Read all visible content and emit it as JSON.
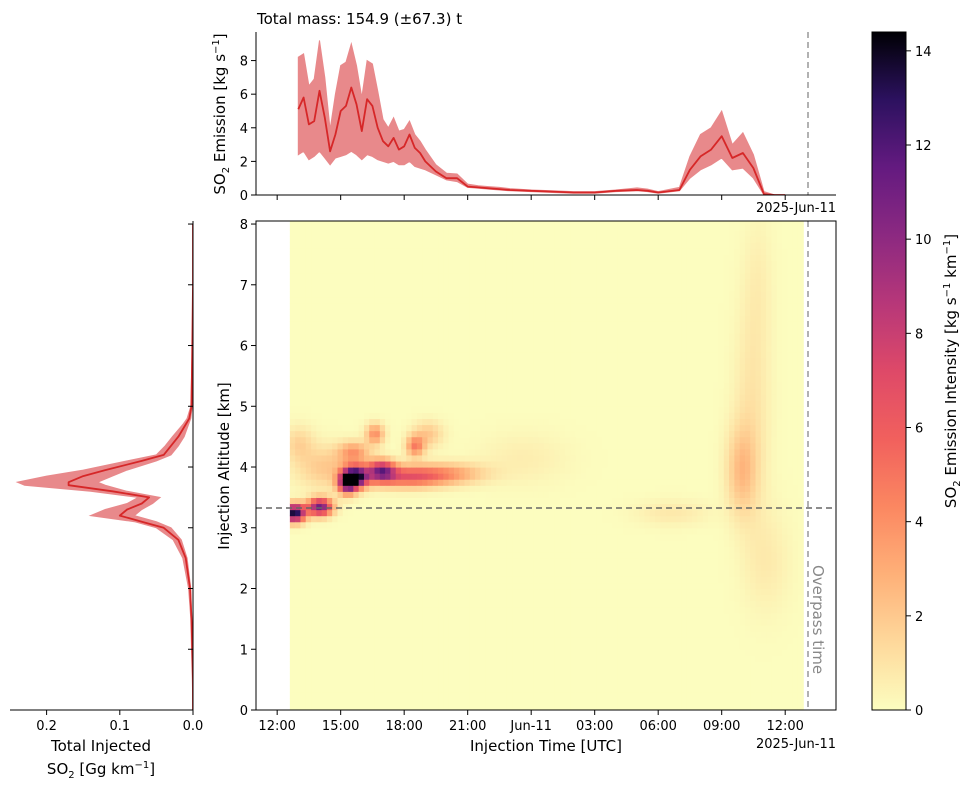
{
  "top_title": "Total mass: 154.9 (±67.3) t",
  "top_ylabel": "SO₂ Emission [kg s⁻¹]",
  "main_ylabel": "Injection Altitude [km]",
  "main_xlabel": "Injection Time [UTC]",
  "date_tag": "2025-Jun-11",
  "overpass_label": "Overpass time",
  "side_xlabel_line1": "Total Injected",
  "side_xlabel_line2": "SO₂ [Gg km⁻¹]",
  "colorbar_label": "SO₂ Emission Intensity [kg s⁻¹ km⁻¹]",
  "colors": {
    "line": "#d62728",
    "band": "#e8898b",
    "dash_vertical": "#999999",
    "dash_horizontal": "#666666"
  },
  "colormap": "magma_r",
  "chart_data": [
    {
      "type": "line",
      "panel": "emission time series",
      "x_unit": "hours since 12:00 UTC (2025-Jun-10)",
      "ylim": [
        0,
        9.7
      ],
      "yticks": [
        0,
        2,
        4,
        6,
        8
      ],
      "x": [
        1.0,
        1.25,
        1.5,
        1.75,
        2.0,
        2.25,
        2.5,
        2.75,
        3.0,
        3.25,
        3.5,
        3.75,
        4.0,
        4.25,
        4.5,
        4.75,
        5.0,
        5.25,
        5.5,
        5.75,
        6.0,
        6.25,
        6.5,
        6.75,
        7.0,
        7.5,
        8.0,
        8.5,
        9.0,
        9.5,
        10.0,
        10.5,
        11.0,
        12.0,
        13.0,
        14.0,
        15.0,
        16.0,
        17.0,
        17.5,
        18.0,
        19.0,
        19.5,
        20.0,
        20.5,
        21.0,
        21.5,
        22.0,
        22.5,
        23.0,
        23.5,
        24.0
      ],
      "y": [
        5.1,
        5.8,
        4.2,
        4.4,
        6.2,
        4.6,
        2.6,
        3.6,
        5.0,
        5.3,
        6.4,
        5.4,
        3.8,
        5.7,
        5.3,
        4.0,
        3.2,
        2.9,
        3.4,
        2.7,
        2.9,
        3.6,
        2.8,
        2.5,
        2.0,
        1.4,
        1.0,
        1.0,
        0.5,
        0.45,
        0.4,
        0.35,
        0.3,
        0.25,
        0.2,
        0.15,
        0.15,
        0.25,
        0.3,
        0.25,
        0.15,
        0.3,
        1.5,
        2.3,
        2.7,
        3.5,
        2.2,
        2.5,
        1.6,
        0.05,
        0.0,
        0.0
      ],
      "y_low": [
        2.4,
        2.6,
        2.1,
        2.3,
        2.6,
        2.2,
        1.8,
        2.2,
        2.3,
        2.4,
        2.6,
        2.4,
        2.1,
        2.4,
        2.3,
        2.1,
        2.0,
        1.9,
        2.0,
        1.8,
        1.8,
        2.0,
        1.7,
        1.6,
        1.5,
        1.2,
        0.9,
        0.8,
        0.45,
        0.4,
        0.35,
        0.3,
        0.25,
        0.2,
        0.15,
        0.1,
        0.1,
        0.2,
        0.25,
        0.2,
        0.1,
        0.25,
        1.0,
        1.5,
        1.8,
        2.2,
        1.5,
        1.6,
        1.0,
        0.0,
        0.0,
        0.0
      ],
      "y_high": [
        8.2,
        8.4,
        6.5,
        6.9,
        9.2,
        7.0,
        3.9,
        6.0,
        7.7,
        7.9,
        9.0,
        7.7,
        5.8,
        8.0,
        7.8,
        6.2,
        4.5,
        4.0,
        4.6,
        3.8,
        3.9,
        4.4,
        3.6,
        3.2,
        2.7,
        1.8,
        1.3,
        1.25,
        0.65,
        0.55,
        0.5,
        0.45,
        0.38,
        0.3,
        0.25,
        0.2,
        0.2,
        0.3,
        0.42,
        0.35,
        0.2,
        0.45,
        2.3,
        3.6,
        4.0,
        5.0,
        3.0,
        3.7,
        2.4,
        0.2,
        0.0,
        0.0
      ]
    },
    {
      "type": "line",
      "panel": "vertical profile",
      "xlabel": "Total Injected SO₂ [Gg km⁻¹]",
      "xlim": [
        0.25,
        0.0
      ],
      "xticks": [
        0.2,
        0.1,
        0.0
      ],
      "ylim": [
        0,
        8.05
      ],
      "y": [
        0.0,
        0.5,
        1.0,
        1.5,
        2.0,
        2.5,
        2.8,
        3.0,
        3.1,
        3.2,
        3.3,
        3.4,
        3.5,
        3.6,
        3.7,
        3.75,
        3.85,
        3.95,
        4.1,
        4.2,
        4.35,
        4.5,
        4.7,
        4.8,
        5.0,
        6.0,
        7.0,
        8.0
      ],
      "x": [
        0.0,
        0.0,
        0.001,
        0.002,
        0.004,
        0.01,
        0.02,
        0.04,
        0.07,
        0.1,
        0.09,
        0.07,
        0.06,
        0.11,
        0.17,
        0.17,
        0.15,
        0.12,
        0.07,
        0.04,
        0.03,
        0.02,
        0.01,
        0.005,
        0.002,
        0.001,
        0.0,
        0.0
      ],
      "x_low": [
        0.0,
        0.0,
        0.001,
        0.002,
        0.003,
        0.008,
        0.016,
        0.03,
        0.05,
        0.08,
        0.07,
        0.055,
        0.045,
        0.09,
        0.12,
        0.13,
        0.11,
        0.09,
        0.05,
        0.03,
        0.02,
        0.012,
        0.006,
        0.003,
        0.001,
        0.0,
        0.0,
        0.0
      ],
      "x_high": [
        0.0,
        0.001,
        0.002,
        0.003,
        0.006,
        0.014,
        0.027,
        0.05,
        0.08,
        0.14,
        0.12,
        0.09,
        0.075,
        0.14,
        0.23,
        0.24,
        0.2,
        0.15,
        0.09,
        0.05,
        0.038,
        0.028,
        0.014,
        0.008,
        0.003,
        0.001,
        0.0,
        0.0
      ]
    },
    {
      "type": "heatmap",
      "panel": "injection altitude vs time",
      "xlabel": "Injection Time [UTC]",
      "ylabel": "Injection Altitude [km]",
      "x_unit": "hours since 12:00 UTC (2025-Jun-10)",
      "xlim": [
        -1.0,
        26.4
      ],
      "ylim": [
        0,
        8.05
      ],
      "xtick_values": [
        0,
        3,
        6,
        9,
        12,
        15,
        18,
        21,
        24
      ],
      "xtick_labels": [
        "12:00",
        "15:00",
        "18:00",
        "21:00",
        "Jun-11",
        "03:00",
        "06:00",
        "09:00",
        "12:00"
      ],
      "yticks": [
        0,
        1,
        2,
        3,
        4,
        5,
        6,
        7,
        8
      ],
      "hline_altitude_km": 3.3,
      "data_start_x": 0.6,
      "overpass_time_x": 24.7,
      "value_range": [
        0,
        14.4
      ],
      "blobs": [
        {
          "t": 0.7,
          "z": 3.2,
          "st": 0.35,
          "sz": 0.1,
          "amp": 14
        },
        {
          "t": 1.9,
          "z": 3.3,
          "st": 0.4,
          "sz": 0.1,
          "amp": 11
        },
        {
          "t": 3.2,
          "z": 3.7,
          "st": 0.3,
          "sz": 0.12,
          "amp": 11
        },
        {
          "t": 3.6,
          "z": 3.8,
          "st": 0.4,
          "sz": 0.12,
          "amp": 13
        },
        {
          "t": 4.8,
          "z": 3.9,
          "st": 0.45,
          "sz": 0.12,
          "amp": 9
        },
        {
          "t": 6.0,
          "z": 3.8,
          "st": 1.2,
          "sz": 0.12,
          "amp": 6
        },
        {
          "t": 8.0,
          "z": 3.85,
          "st": 1.2,
          "sz": 0.12,
          "amp": 3
        },
        {
          "t": 3.5,
          "z": 4.2,
          "st": 0.5,
          "sz": 0.12,
          "amp": 3.5
        },
        {
          "t": 4.5,
          "z": 4.5,
          "st": 0.3,
          "sz": 0.12,
          "amp": 4
        },
        {
          "t": 6.4,
          "z": 4.3,
          "st": 0.3,
          "sz": 0.12,
          "amp": 4.5
        },
        {
          "t": 0.9,
          "z": 4.35,
          "st": 0.5,
          "sz": 0.2,
          "amp": 1.5
        },
        {
          "t": 7.0,
          "z": 4.5,
          "st": 0.5,
          "sz": 0.15,
          "amp": 2
        },
        {
          "t": 2.2,
          "z": 3.95,
          "st": 1.0,
          "sz": 0.25,
          "amp": 2
        },
        {
          "t": 11.5,
          "z": 4.1,
          "st": 1.5,
          "sz": 0.3,
          "amp": 0.6
        },
        {
          "t": 18.5,
          "z": 3.2,
          "st": 1.2,
          "sz": 0.15,
          "amp": 0.8
        },
        {
          "t": 21.8,
          "z": 3.9,
          "st": 0.5,
          "sz": 0.5,
          "amp": 2.2
        },
        {
          "t": 22.3,
          "z": 4.9,
          "st": 0.6,
          "sz": 1.2,
          "amp": 1.0
        },
        {
          "t": 22.6,
          "z": 7.0,
          "st": 0.5,
          "sz": 0.8,
          "amp": 0.5
        },
        {
          "t": 23.0,
          "z": 2.4,
          "st": 0.8,
          "sz": 0.6,
          "amp": 0.7
        }
      ]
    },
    {
      "type": "colorbar",
      "label": "SO₂ Emission Intensity [kg s⁻¹ km⁻¹]",
      "range": [
        0,
        14.4
      ],
      "ticks": [
        0,
        2,
        4,
        6,
        8,
        10,
        12,
        14
      ]
    }
  ]
}
